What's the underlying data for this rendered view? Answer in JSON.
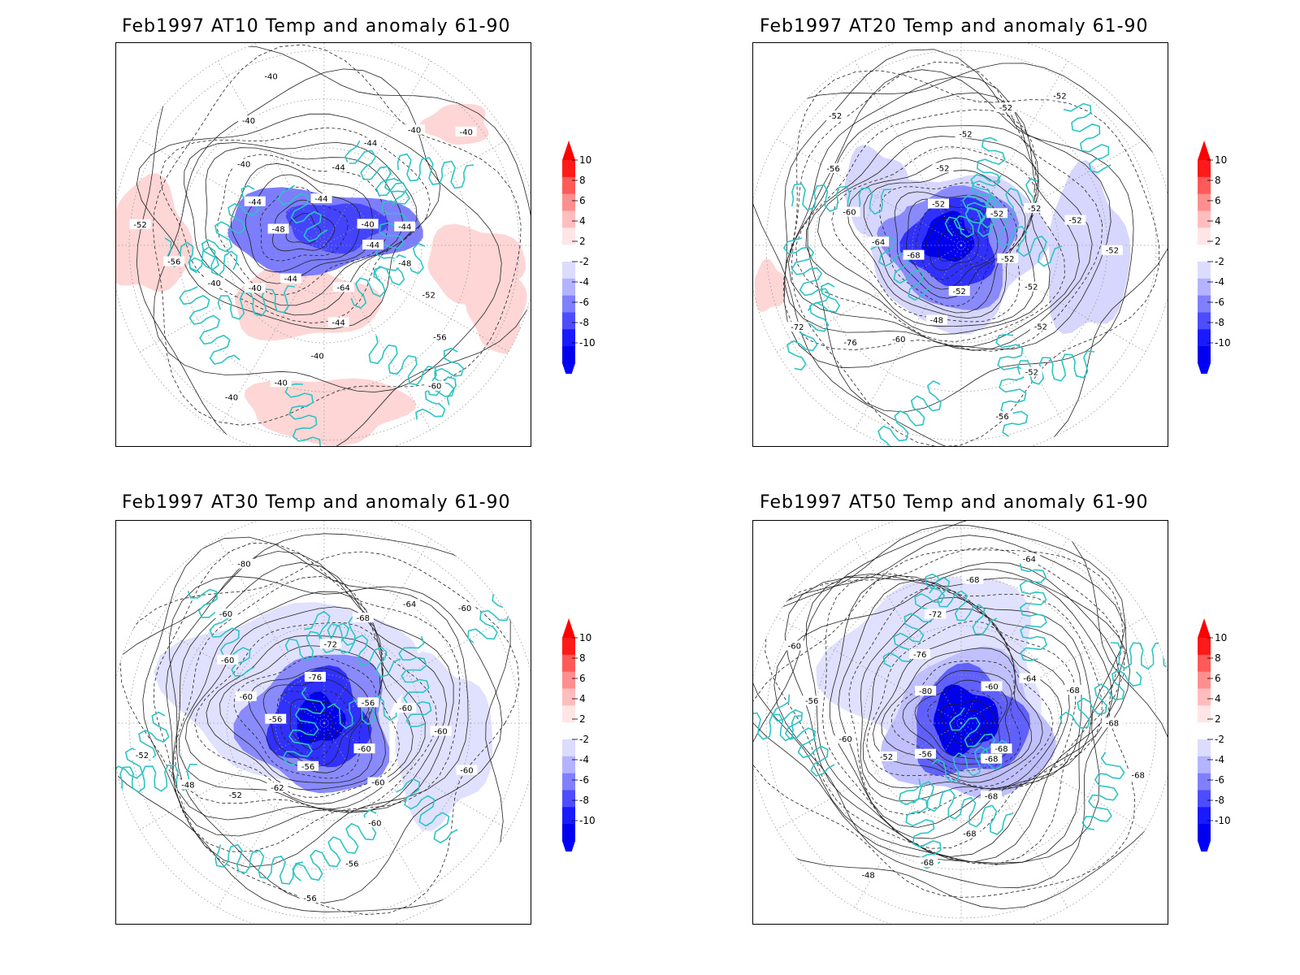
{
  "figure": {
    "panels": [
      {
        "id": "at10",
        "title": "Feb1997 AT10 Temp and anomaly 61-90",
        "contour_labels": [
          "-44",
          "-48",
          "-52",
          "-56",
          "-60",
          "-64",
          "-44",
          "-40",
          "-40",
          "-40",
          "-44",
          "-40",
          "-40",
          "-56",
          "-52",
          "-48",
          "-44",
          "-40",
          "-40",
          "-40",
          "-44",
          "-44",
          "-44",
          "-40",
          "-40",
          "-40",
          "-44"
        ]
      },
      {
        "id": "at20",
        "title": "Feb1997 AT20 Temp and anomaly 61-90",
        "contour_labels": [
          "-52",
          "-52",
          "-52",
          "-52",
          "-56",
          "-52",
          "-48",
          "-60",
          "-76",
          "-72",
          "-68",
          "-64",
          "-60",
          "-56",
          "-52",
          "-52",
          "-52",
          "-52",
          "-52",
          "-52",
          "-52",
          "-52",
          "-52",
          "-52"
        ]
      },
      {
        "id": "at30",
        "title": "Feb1997 AT30 Temp and anomaly 61-90",
        "contour_labels": [
          "-60",
          "-60",
          "-60",
          "-56",
          "-56",
          "-56",
          "-62",
          "-52",
          "-48",
          "-52",
          "-56",
          "-60",
          "-60",
          "-60",
          "-80",
          "-76",
          "-72",
          "-68",
          "-64",
          "-60",
          "-56",
          "-60",
          "-60",
          "-60"
        ]
      },
      {
        "id": "at50",
        "title": "Feb1997 AT50 Temp and anomaly 61-90",
        "contour_labels": [
          "-68",
          "-68",
          "-68",
          "-68",
          "-48",
          "-56",
          "-52",
          "-60",
          "-56",
          "-60",
          "-80",
          "-76",
          "-72",
          "-68",
          "-64",
          "-60",
          "-64",
          "-68",
          "-68",
          "-68",
          "-68"
        ]
      }
    ],
    "colorbar": {
      "levels": [
        "10",
        "8",
        "6",
        "4",
        "2",
        "-2",
        "-4",
        "-6",
        "-8",
        "-10"
      ],
      "colors": [
        "#ff1a1a",
        "#ff5a5a",
        "#ff8f8f",
        "#ffbdbd",
        "#ffe6e6",
        "#ffffff",
        "#dcdcff",
        "#b3b3ff",
        "#8080ff",
        "#4d4dff",
        "#1a1aff",
        "#0000ee"
      ],
      "max_arrow_color": "#ff0000",
      "min_arrow_color": "#0000ff"
    },
    "colors": {
      "coastline": "#2ec4c4",
      "contour": "#222222",
      "grid": "#9a9a9a"
    }
  }
}
